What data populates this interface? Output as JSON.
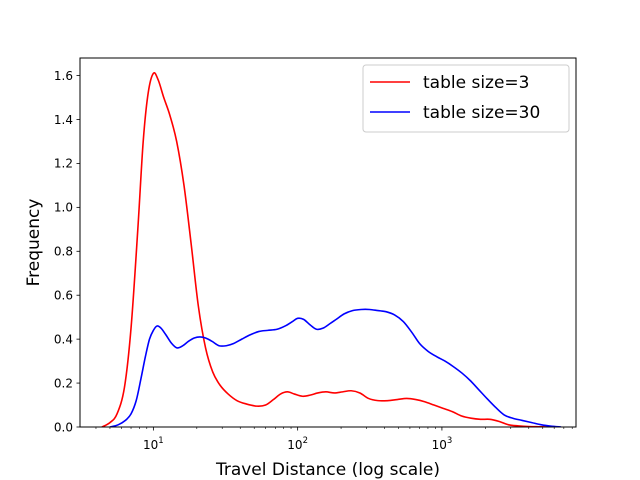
{
  "chart_data": {
    "type": "line",
    "title": "",
    "xlabel": "Travel Distance (log scale)",
    "ylabel": "Frequency",
    "xscale": "log",
    "xlim": [
      3.1,
      8500
    ],
    "ylim": [
      0,
      1.68
    ],
    "grid": false,
    "legend_placement": "top-right",
    "x_ticks": [
      {
        "value": 10,
        "base": "10",
        "exp": "1"
      },
      {
        "value": 100,
        "base": "10",
        "exp": "2"
      },
      {
        "value": 1000,
        "base": "10",
        "exp": "3"
      }
    ],
    "y_ticks": [
      "0.0",
      "0.2",
      "0.4",
      "0.6",
      "0.8",
      "1.0",
      "1.2",
      "1.4",
      "1.6"
    ],
    "series": [
      {
        "name": "table size=3",
        "color": "#ff0000",
        "x": [
          4.4,
          5.0,
          5.6,
          6.3,
          7.0,
          7.8,
          8.5,
          9.2,
          10.0,
          10.8,
          11.8,
          13.0,
          14.5,
          16.3,
          18.3,
          20.5,
          23.0,
          25.8,
          29.0,
          33.0,
          38.0,
          44.0,
          52.0,
          60.0,
          68.0,
          76.0,
          85.0,
          95.0,
          108.0,
          122.0,
          138.0,
          157.0,
          180.0,
          205.0,
          235.0,
          270.0,
          310.0,
          360.0,
          420.0,
          490.0,
          570.0,
          660.0,
          760.0,
          880.0,
          1020.0,
          1180.0,
          1370.0,
          1590.0,
          1850.0,
          2150.0,
          2500.0,
          2900.0,
          3400.0,
          4000.0,
          4700.0,
          5500.0
        ],
        "y": [
          0.0,
          0.02,
          0.06,
          0.18,
          0.45,
          0.9,
          1.3,
          1.52,
          1.61,
          1.58,
          1.5,
          1.42,
          1.3,
          1.1,
          0.83,
          0.55,
          0.36,
          0.25,
          0.19,
          0.15,
          0.12,
          0.105,
          0.095,
          0.1,
          0.125,
          0.15,
          0.16,
          0.15,
          0.14,
          0.145,
          0.155,
          0.16,
          0.155,
          0.16,
          0.165,
          0.155,
          0.13,
          0.12,
          0.12,
          0.125,
          0.13,
          0.125,
          0.115,
          0.1,
          0.085,
          0.07,
          0.05,
          0.04,
          0.035,
          0.035,
          0.025,
          0.01,
          0.005,
          0.002,
          0.001,
          0.0
        ]
      },
      {
        "name": "table size=30",
        "color": "#0000ff",
        "x": [
          5.0,
          5.7,
          6.4,
          7.0,
          7.6,
          8.2,
          8.8,
          9.4,
          10.0,
          10.6,
          11.3,
          12.2,
          13.4,
          14.6,
          16.0,
          17.5,
          19.2,
          21.0,
          23.0,
          25.5,
          28.5,
          32.0,
          36.0,
          41.0,
          47.0,
          54.0,
          62.0,
          72.0,
          82.0,
          92.0,
          100.0,
          110.0,
          122.0,
          135.0,
          150.0,
          167.0,
          185.0,
          210.0,
          240.0,
          275.0,
          315.0,
          360.0,
          410.0,
          470.0,
          540.0,
          620.0,
          700.0,
          800.0,
          920.0,
          1050.0,
          1200.0,
          1380.0,
          1580.0,
          1800.0,
          2050.0,
          2350.0,
          2700.0,
          3100.0,
          3600.0,
          4200.0,
          4900.0,
          5700.0,
          6700.0
        ],
        "y": [
          0.0,
          0.01,
          0.03,
          0.06,
          0.12,
          0.22,
          0.32,
          0.4,
          0.44,
          0.46,
          0.45,
          0.42,
          0.38,
          0.36,
          0.37,
          0.39,
          0.405,
          0.41,
          0.405,
          0.39,
          0.37,
          0.37,
          0.38,
          0.4,
          0.42,
          0.435,
          0.44,
          0.445,
          0.46,
          0.48,
          0.495,
          0.49,
          0.465,
          0.445,
          0.45,
          0.47,
          0.49,
          0.515,
          0.53,
          0.535,
          0.535,
          0.53,
          0.525,
          0.51,
          0.48,
          0.43,
          0.38,
          0.345,
          0.32,
          0.3,
          0.275,
          0.245,
          0.21,
          0.17,
          0.13,
          0.09,
          0.055,
          0.04,
          0.03,
          0.02,
          0.01,
          0.004,
          0.0
        ]
      }
    ]
  }
}
